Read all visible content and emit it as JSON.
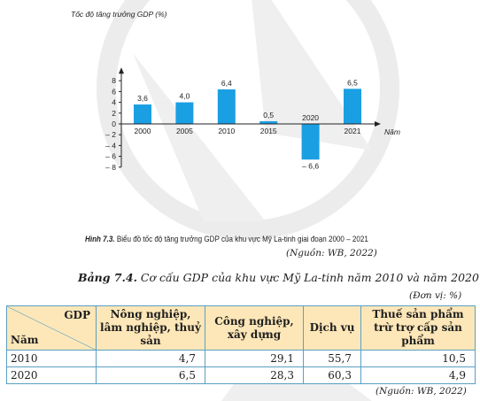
{
  "chart_data": {
    "type": "bar",
    "ylabel": "Tốc độ tăng trưởng GDP (%)",
    "xlabel": "Năm",
    "categories": [
      "2000",
      "2005",
      "2010",
      "2015",
      "2020",
      "2021"
    ],
    "values": [
      3.6,
      4.0,
      6.4,
      0.5,
      -6.6,
      6.5
    ],
    "value_labels": [
      "3,6",
      "4,0",
      "6,4",
      "0,5",
      "– 6,6",
      "6,5"
    ],
    "yticks": [
      {
        "value": 8,
        "label": "8"
      },
      {
        "value": 6,
        "label": "6"
      },
      {
        "value": 4,
        "label": "4"
      },
      {
        "value": 2,
        "label": "2"
      },
      {
        "value": 0,
        "label": "0"
      },
      {
        "value": -2,
        "label": "– 2"
      },
      {
        "value": -4,
        "label": "– 4"
      },
      {
        "value": -6,
        "label": "– 6"
      },
      {
        "value": -8,
        "label": "– 8"
      }
    ],
    "ylim": [
      -8,
      8
    ],
    "bar_color": "#1b9fe3",
    "grid": false
  },
  "figure": {
    "caption_label": "Hình 7.3.",
    "caption_text": " Biểu đồ tốc độ tăng trưởng GDP của khu vực Mỹ La-tinh giai đoạn 2000 – 2021",
    "source": "(Nguồn: WB, 2022)"
  },
  "table": {
    "title_label": "Bảng 7.4.",
    "title_text": " Cơ cấu GDP của khu vực Mỹ La-tinh năm 2010 và năm 2020",
    "unit": "(Đơn vị: %)",
    "corner_top": "GDP",
    "corner_bottom": "Năm",
    "columns": [
      "Nông nghiệp, lâm nghiệp, thuỷ sản",
      "Công nghiệp, xây dựng",
      "Dịch vụ",
      "Thuế sản phẩm trừ trợ cấp sản phẩm"
    ],
    "rows": [
      {
        "year": "2010",
        "values": [
          "4,7",
          "29,1",
          "55,7",
          "10,5"
        ]
      },
      {
        "year": "2020",
        "values": [
          "6,5",
          "28,3",
          "60,3",
          "4,9"
        ]
      }
    ],
    "source": "(Nguồn: WB, 2022)"
  }
}
